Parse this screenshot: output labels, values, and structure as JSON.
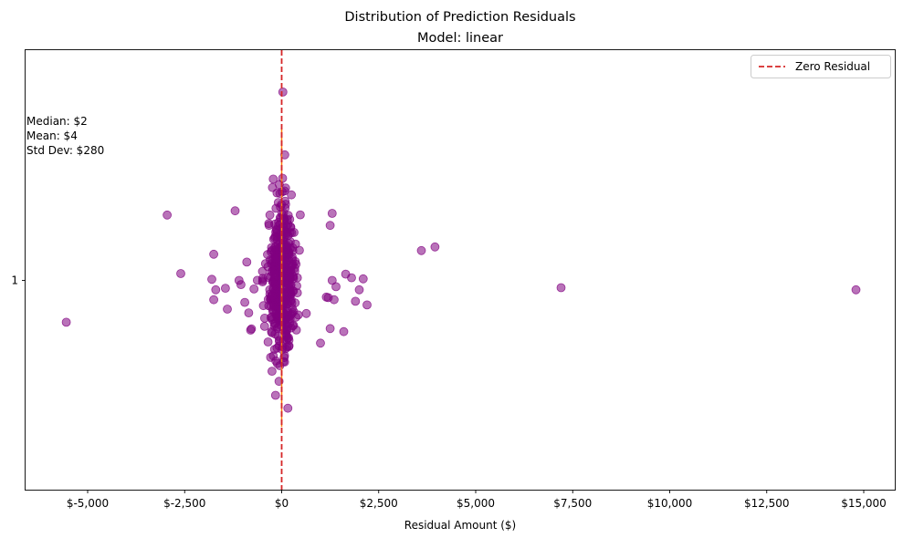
{
  "chart_data": {
    "type": "scatter",
    "title": "Distribution of Prediction Residuals",
    "subtitle": "Model: linear",
    "xlabel": "Residual Amount ($)",
    "ylabel": "",
    "xlim": [
      -6600,
      15800
    ],
    "ylim": [
      0.6,
      1.44
    ],
    "x_ticks": [
      -5000,
      -2500,
      0,
      2500,
      5000,
      7500,
      10000,
      12500,
      15000
    ],
    "x_tick_labels": [
      "$-5,000",
      "$-2,500",
      "$0",
      "$2,500",
      "$5,000",
      "$7,500",
      "$10,000",
      "$12,500",
      "$15,000"
    ],
    "y_ticks": [
      1
    ],
    "y_tick_labels": [
      "1"
    ],
    "grid": false,
    "legend": {
      "position": "top-right",
      "entries": [
        {
          "label": "Zero Residual",
          "color": "#d62728",
          "style": "dashed"
        }
      ]
    },
    "reference_line": {
      "x": 0,
      "color": "#d62728",
      "style": "dashed"
    },
    "box_line": {
      "x": 0,
      "y_range": [
        0.72,
        1.29
      ],
      "color": "#ff7f0e"
    },
    "stats": {
      "median": "Median: $2",
      "mean": "Mean: $4",
      "std": "Std Dev: $280"
    },
    "point_color": "#800080",
    "outliers": [
      {
        "x": -5550,
        "y": 0.92
      },
      {
        "x": -2950,
        "y": 1.125
      },
      {
        "x": -2600,
        "y": 1.013
      },
      {
        "x": -1750,
        "y": 1.05
      },
      {
        "x": -1200,
        "y": 1.133
      },
      {
        "x": -1800,
        "y": 1.002
      },
      {
        "x": -1700,
        "y": 0.982
      },
      {
        "x": -1750,
        "y": 0.963
      },
      {
        "x": -1450,
        "y": 0.985
      },
      {
        "x": -1400,
        "y": 0.945
      },
      {
        "x": -1050,
        "y": 0.992
      },
      {
        "x": -900,
        "y": 1.035
      },
      {
        "x": -950,
        "y": 0.958
      },
      {
        "x": -850,
        "y": 0.938
      },
      {
        "x": -800,
        "y": 0.905
      },
      {
        "x": -1100,
        "y": 1.0
      },
      {
        "x": 1150,
        "y": 0.968
      },
      {
        "x": 1200,
        "y": 0.967
      },
      {
        "x": 1350,
        "y": 0.963
      },
      {
        "x": 1300,
        "y": 1.0
      },
      {
        "x": 1400,
        "y": 0.988
      },
      {
        "x": 1650,
        "y": 1.012
      },
      {
        "x": 1800,
        "y": 1.005
      },
      {
        "x": 1900,
        "y": 0.96
      },
      {
        "x": 2000,
        "y": 0.982
      },
      {
        "x": 2100,
        "y": 1.003
      },
      {
        "x": 2200,
        "y": 0.953
      },
      {
        "x": 1600,
        "y": 0.902
      },
      {
        "x": 1250,
        "y": 0.908
      },
      {
        "x": 1300,
        "y": 1.128
      },
      {
        "x": 1250,
        "y": 1.105
      },
      {
        "x": 1000,
        "y": 0.88
      },
      {
        "x": 3600,
        "y": 1.057
      },
      {
        "x": 3950,
        "y": 1.064
      },
      {
        "x": 7200,
        "y": 0.986
      },
      {
        "x": 14800,
        "y": 0.982
      }
    ],
    "cluster": {
      "center_x": 0,
      "center_y": 1.0,
      "count": 430,
      "spread_x": 220,
      "spread_y": 0.075,
      "seed": 7
    }
  }
}
